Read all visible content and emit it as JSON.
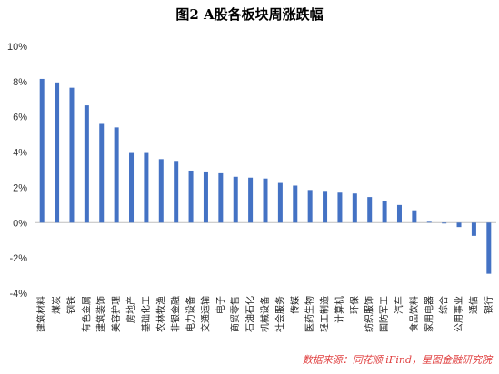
{
  "chart_data": {
    "type": "bar",
    "title": "图2  A股各板块周涨跌幅",
    "source": "数据来源：同花顺 iFind，星图金融研究院",
    "categories": [
      "建筑材料",
      "煤炭",
      "钢铁",
      "有色金属",
      "建筑装饰",
      "美容护理",
      "房地产",
      "基础化工",
      "农林牧渔",
      "非银金融",
      "电力设备",
      "交通运输",
      "电子",
      "商贸零售",
      "石油石化",
      "机械设备",
      "社会服务",
      "传媒",
      "医药生物",
      "轻工制造",
      "计算机",
      "环保",
      "纺织服饰",
      "国防军工",
      "汽车",
      "食品饮料",
      "家用电器",
      "综合",
      "公用事业",
      "通信",
      "银行"
    ],
    "values": [
      8.15,
      7.95,
      7.65,
      6.65,
      5.6,
      5.4,
      4.0,
      4.0,
      3.6,
      3.5,
      2.95,
      2.9,
      2.8,
      2.6,
      2.55,
      2.5,
      2.25,
      2.1,
      1.85,
      1.8,
      1.7,
      1.65,
      1.45,
      1.25,
      1.0,
      0.7,
      0.05,
      -0.05,
      -0.25,
      -0.75,
      -2.9
    ],
    "ylim": [
      -4,
      10
    ],
    "yticks": [
      -4,
      -2,
      0,
      2,
      4,
      6,
      8,
      10
    ],
    "ytick_suffix": "%",
    "bar_color": "#4472C4",
    "grid": false
  }
}
